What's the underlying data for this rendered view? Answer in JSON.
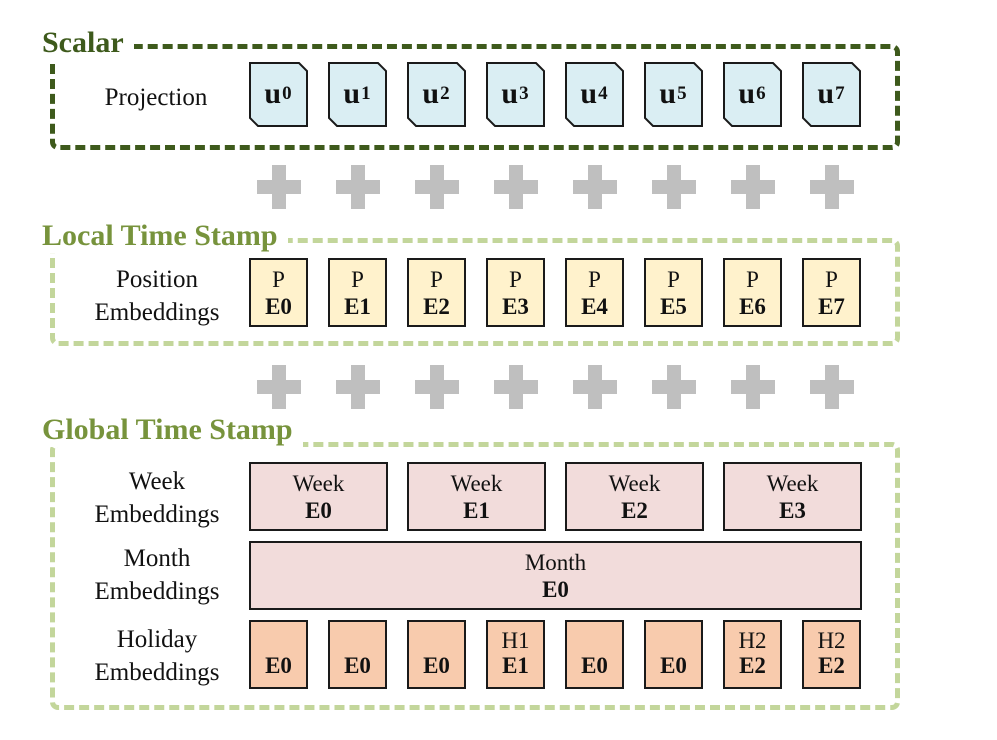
{
  "scalar": {
    "title": "Scalar",
    "row_label": "Projection",
    "tokens": [
      {
        "base": "u",
        "sub": "0"
      },
      {
        "base": "u",
        "sub": "1"
      },
      {
        "base": "u",
        "sub": "2"
      },
      {
        "base": "u",
        "sub": "3"
      },
      {
        "base": "u",
        "sub": "4"
      },
      {
        "base": "u",
        "sub": "5"
      },
      {
        "base": "u",
        "sub": "6"
      },
      {
        "base": "u",
        "sub": "7"
      }
    ]
  },
  "local": {
    "title": "Local Time Stamp",
    "row_label_1": "Position",
    "row_label_2": "Embeddings",
    "boxes": [
      {
        "top": "P",
        "bottom": "E0"
      },
      {
        "top": "P",
        "bottom": "E1"
      },
      {
        "top": "P",
        "bottom": "E2"
      },
      {
        "top": "P",
        "bottom": "E3"
      },
      {
        "top": "P",
        "bottom": "E4"
      },
      {
        "top": "P",
        "bottom": "E5"
      },
      {
        "top": "P",
        "bottom": "E6"
      },
      {
        "top": "P",
        "bottom": "E7"
      }
    ]
  },
  "global": {
    "title": "Global Time Stamp",
    "week": {
      "row_label_1": "Week",
      "row_label_2": "Embeddings",
      "boxes": [
        {
          "top": "Week",
          "bottom": "E0"
        },
        {
          "top": "Week",
          "bottom": "E1"
        },
        {
          "top": "Week",
          "bottom": "E2"
        },
        {
          "top": "Week",
          "bottom": "E3"
        }
      ]
    },
    "month": {
      "row_label_1": "Month",
      "row_label_2": "Embeddings",
      "box": {
        "top": "Month",
        "bottom": "E0"
      }
    },
    "holiday": {
      "row_label_1": "Holiday",
      "row_label_2": "Embeddings",
      "boxes": [
        {
          "top": "",
          "bottom": "E0"
        },
        {
          "top": "",
          "bottom": "E0"
        },
        {
          "top": "",
          "bottom": "E0"
        },
        {
          "top": "H1",
          "bottom": "E1"
        },
        {
          "top": "",
          "bottom": "E0"
        },
        {
          "top": "",
          "bottom": "E0"
        },
        {
          "top": "H2",
          "bottom": "E2"
        },
        {
          "top": "H2",
          "bottom": "E2"
        }
      ]
    }
  },
  "colors": {
    "scalar_title": "#3e5a1c",
    "section_title": "#77933c",
    "dark_dash": "#3e5a1c",
    "light_dash": "#c3d69b",
    "projection_fill": "#daeef3",
    "position_fill": "#fff2cc",
    "week_month_fill": "#f2dcdb",
    "holiday_fill": "#f8cbad",
    "plus": "#bfbfbf"
  }
}
